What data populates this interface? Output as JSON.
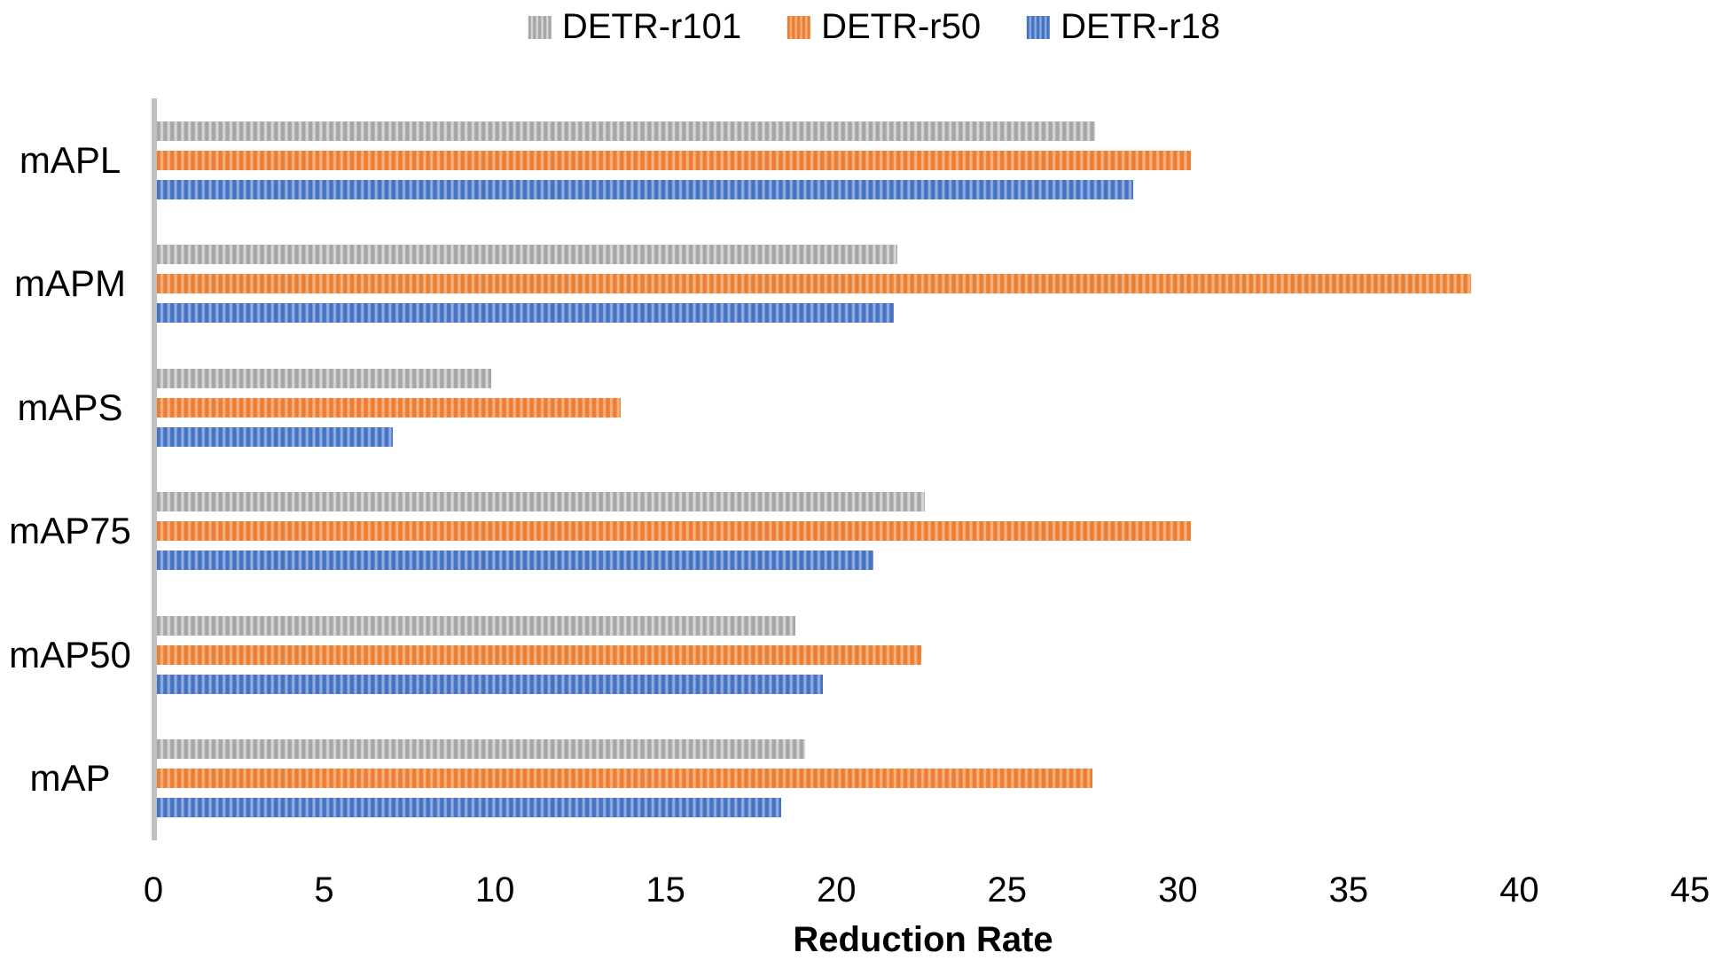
{
  "legend": {
    "items": [
      {
        "label": "DETR-r101"
      },
      {
        "label": "DETR-r50"
      },
      {
        "label": "DETR-r18"
      }
    ]
  },
  "chart_data": {
    "type": "bar",
    "orientation": "horizontal",
    "title": "",
    "xlabel": "Reduction Rate",
    "ylabel": "",
    "xlim": [
      0,
      45
    ],
    "xticks": [
      0,
      5,
      10,
      15,
      20,
      25,
      30,
      35,
      40,
      45
    ],
    "grid": false,
    "legend_position": "top-center",
    "categories": [
      "mAPL",
      "mAPM",
      "mAPS",
      "mAP75",
      "mAP50",
      "mAP"
    ],
    "series": [
      {
        "name": "DETR-r101",
        "pattern": "vertical-stripes",
        "color": "#A6A6A6",
        "color_light": "#D7D7D7",
        "values": [
          27.5,
          21.7,
          9.8,
          22.5,
          18.7,
          19.0
        ]
      },
      {
        "name": "DETR-r50",
        "pattern": "vertical-stripes",
        "color": "#ED7D31",
        "color_light": "#F6B183",
        "values": [
          30.3,
          38.5,
          13.6,
          30.3,
          22.4,
          27.4
        ]
      },
      {
        "name": "DETR-r18",
        "pattern": "vertical-stripes",
        "color": "#4472C4",
        "color_light": "#92ACDE",
        "values": [
          28.6,
          21.6,
          6.9,
          21.0,
          19.5,
          18.3
        ]
      }
    ],
    "axis_line_color": "#BFBFBF"
  }
}
